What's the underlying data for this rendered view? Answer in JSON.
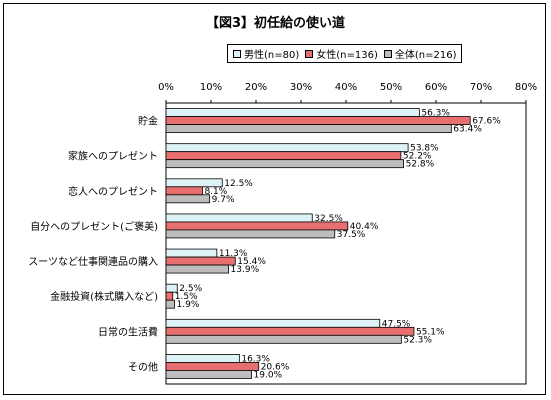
{
  "title": "【図3】初任給の使い道",
  "colors": {
    "male": "#ddf3f5",
    "female": "#e86f6f",
    "total": "#bdbdbd",
    "border": "#000000"
  },
  "chart_data": {
    "type": "bar",
    "orientation": "horizontal",
    "xlim": [
      0,
      80
    ],
    "ticks": [
      "0%",
      "10%",
      "20%",
      "30%",
      "40%",
      "50%",
      "60%",
      "70%",
      "80%"
    ],
    "categories": [
      "貯金",
      "家族へのプレゼント",
      "恋人へのプレゼント",
      "自分へのプレゼント(ご褒美)",
      "スーツなど仕事関連品の購入",
      "金融投資(株式購入など)",
      "日常の生活費",
      "その他"
    ],
    "series": [
      {
        "name": "男性(n=80)",
        "values": [
          56.3,
          53.8,
          12.5,
          32.5,
          11.3,
          2.5,
          47.5,
          16.3
        ],
        "labels": [
          "56.3%",
          "53.8%",
          "12.5%",
          "32.5%",
          "11.3%",
          "2.5%",
          "47.5%",
          "16.3%"
        ]
      },
      {
        "name": "女性(n=136)",
        "values": [
          67.6,
          52.2,
          8.1,
          40.4,
          15.4,
          1.5,
          55.1,
          20.6
        ],
        "labels": [
          "67.6%",
          "52.2%",
          "8.1%",
          "40.4%",
          "15.4%",
          "1.5%",
          "55.1%",
          "20.6%"
        ]
      },
      {
        "name": "全体(n=216)",
        "values": [
          63.4,
          52.8,
          9.7,
          37.5,
          13.9,
          1.9,
          52.3,
          19.0
        ],
        "labels": [
          "63.4%",
          "52.8%",
          "9.7%",
          "37.5%",
          "13.9%",
          "1.9%",
          "52.3%",
          "19.0%"
        ]
      }
    ]
  }
}
